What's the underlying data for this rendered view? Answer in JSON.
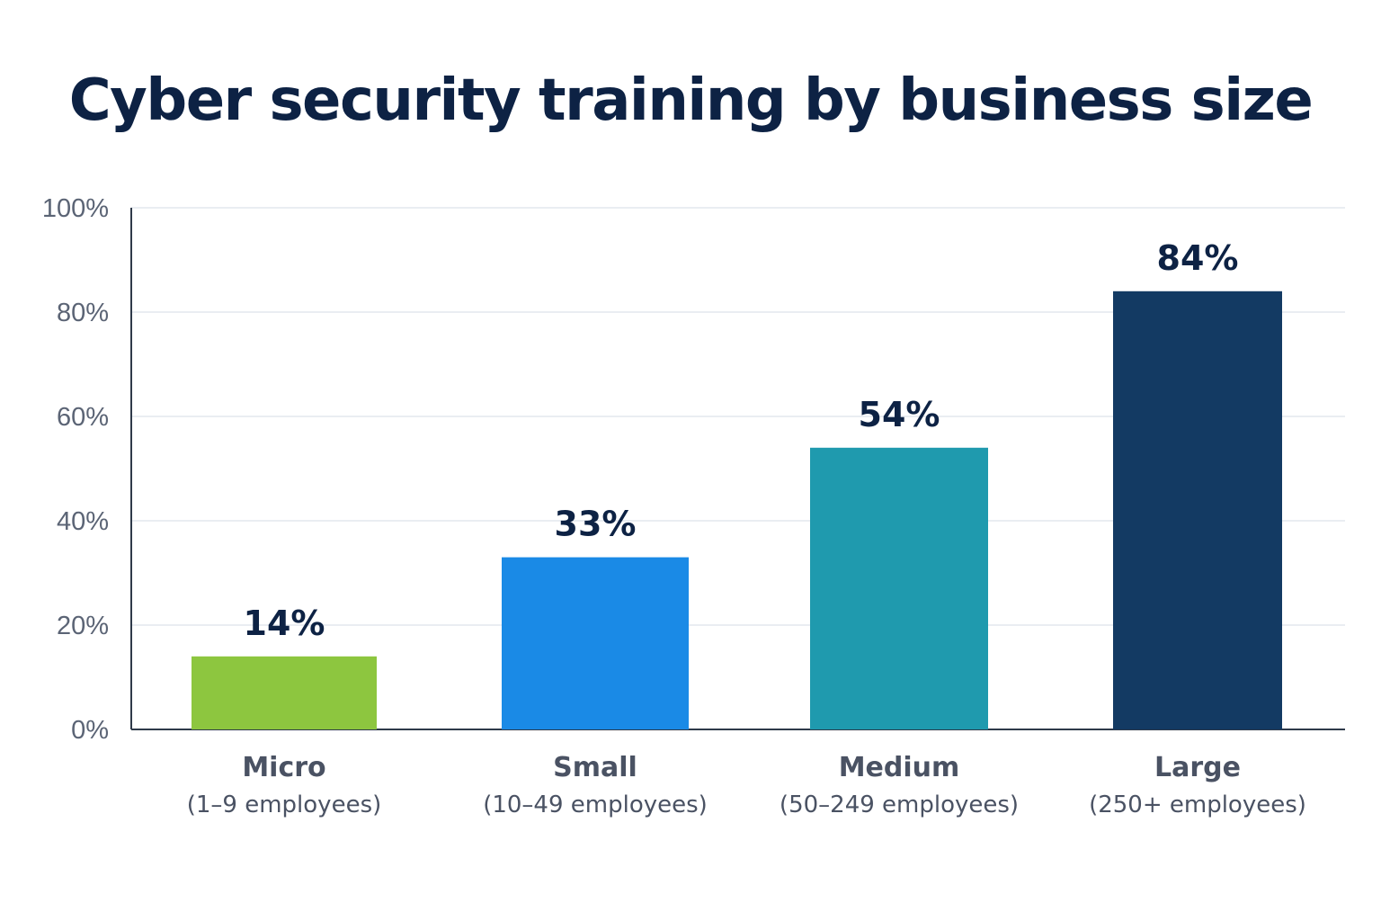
{
  "chart_data": {
    "type": "bar",
    "title": "Cyber security training by business size",
    "categories": [
      "Micro",
      "Small",
      "Medium",
      "Large"
    ],
    "category_subtitles": [
      "(1–9 employees)",
      "(10–49 employees)",
      "(50–249 employees)",
      "(250+ employees)"
    ],
    "values": [
      14,
      33,
      54,
      84
    ],
    "value_labels": [
      "14%",
      "33%",
      "54%",
      "84%"
    ],
    "colors": [
      "#8dc63f",
      "#1a8ae6",
      "#1f9aae",
      "#133a63"
    ],
    "ylim": [
      0,
      100
    ],
    "yticks": [
      0,
      20,
      40,
      60,
      80,
      100
    ],
    "ytick_labels": [
      "0%",
      "20%",
      "40%",
      "60%",
      "80%",
      "100%"
    ],
    "xlabel": "",
    "ylabel": "",
    "grid": true,
    "legend": "none"
  }
}
